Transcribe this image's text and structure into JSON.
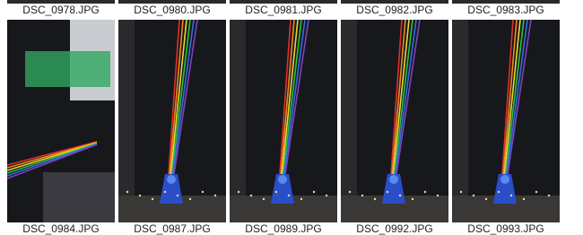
{
  "files_row_1": [
    "DSC_0978.JPG",
    "DSC_0980.JPG",
    "DSC_0981.JPG",
    "DSC_0982.JPG",
    "DSC_0983.JPG"
  ],
  "files_row_2": [
    "DSC_0984.JPG",
    "DSC_0987.JPG",
    "DSC_0989.JPG",
    "DSC_0992.JPG",
    "DSC_0993.JPG"
  ]
}
